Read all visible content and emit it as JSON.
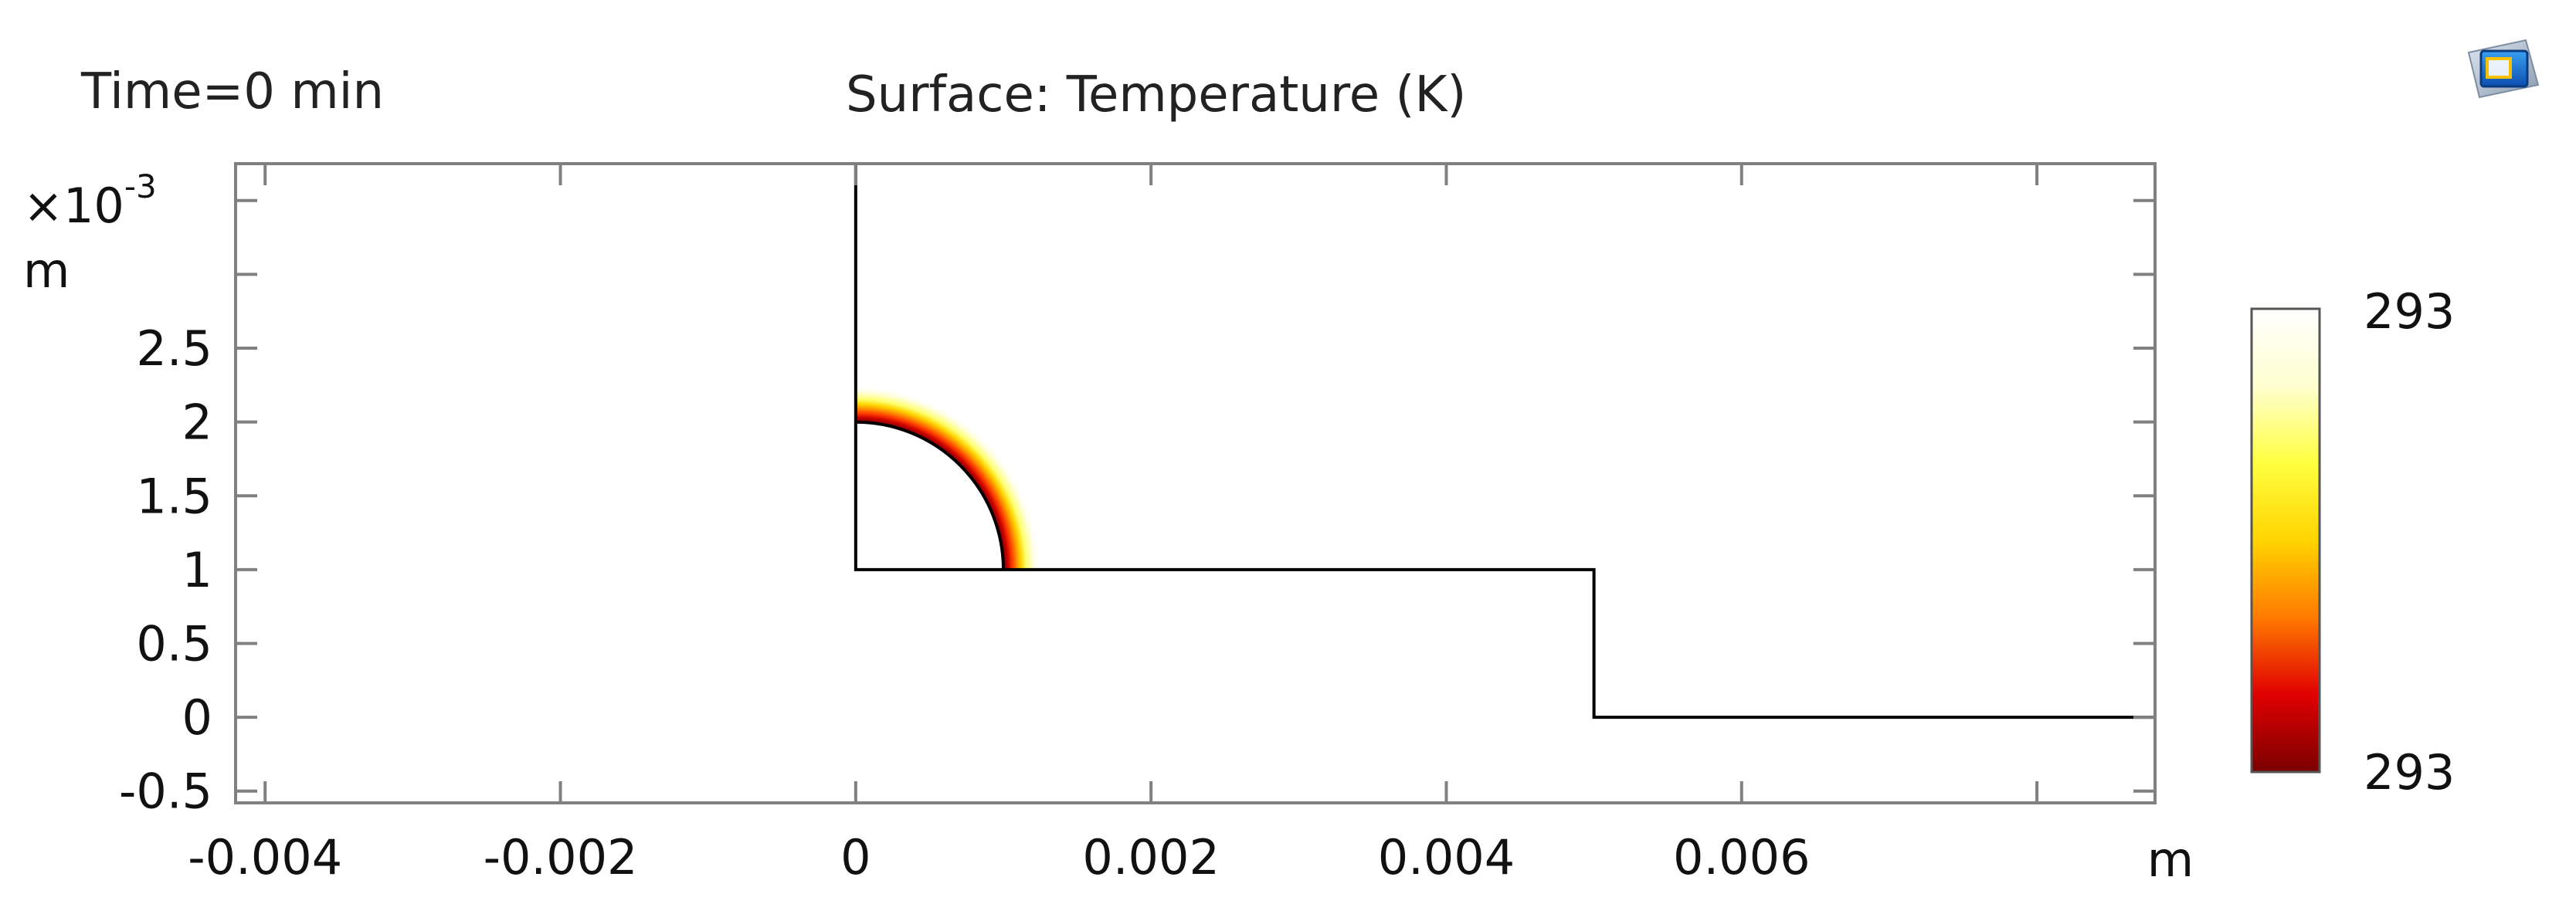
{
  "header": {
    "time_label": "Time=0 min",
    "plot_title": "Surface: Temperature (K)"
  },
  "chart_data": {
    "type": "heatmap",
    "title": "Surface: Temperature (K)",
    "subtitle": "Time=0 min",
    "xlabel": "m",
    "ylabel": "m",
    "y_scale_label": "×10",
    "y_scale_exponent": "-3",
    "xlim": [
      -0.0042,
      0.0088
    ],
    "ylim": [
      -0.00058,
      0.00375
    ],
    "x_ticks": [
      -0.004,
      -0.002,
      0,
      0.002,
      0.004,
      0.006
    ],
    "x_tick_labels": [
      "-0.004",
      "-0.002",
      "0",
      "0.002",
      "0.004",
      "0.006"
    ],
    "y_ticks": [
      -0.0005,
      0,
      0.0005,
      0.001,
      0.0015,
      0.002,
      0.0025
    ],
    "y_tick_labels": [
      "-0.5",
      "0",
      "0.5",
      "1",
      "1.5",
      "2",
      "2.5"
    ],
    "grid": false,
    "colorbar": {
      "max_label": "293",
      "min_label": "293",
      "colors": [
        "#7a0000",
        "#e00000",
        "#ff7a00",
        "#ffd400",
        "#ffff40",
        "#ffffd0",
        "#ffffff"
      ]
    },
    "geometry": {
      "domain_outline": [
        [
          0,
          0.00375
        ],
        [
          0,
          0.001
        ],
        [
          0.005,
          0.001
        ],
        [
          0.005,
          0
        ],
        [
          0.0088,
          0
        ]
      ],
      "hole_center": [
        0,
        0.001
      ],
      "hole_radius": 0.001,
      "hot_layer_thickness": 0.00025
    }
  }
}
